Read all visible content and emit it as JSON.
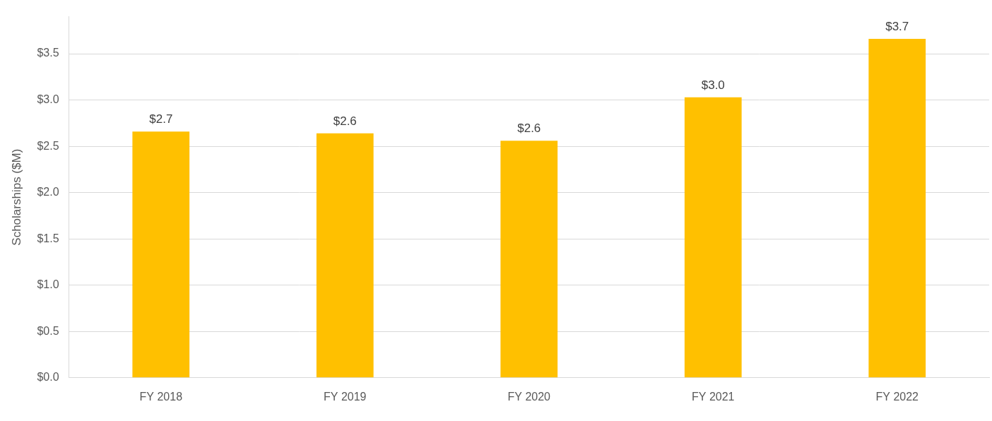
{
  "chart_data": {
    "type": "bar",
    "y_label": "Scholarships ($M)",
    "categories": [
      "FY 2018",
      "FY 2019",
      "FY 2020",
      "FY 2021",
      "FY 2022"
    ],
    "values": [
      2.66,
      2.64,
      2.56,
      3.03,
      3.66
    ],
    "value_labels": [
      "$2.7",
      "$2.6",
      "$2.6",
      "$3.0",
      "$3.7"
    ],
    "data_labels": true,
    "color": "#ffc000",
    "ylim": [
      0,
      3.9
    ],
    "yticks": [
      {
        "value": 0,
        "label": "$0.0"
      },
      {
        "value": 0.5,
        "label": "$0.5"
      },
      {
        "value": 1,
        "label": "$1.0"
      },
      {
        "value": 1.5,
        "label": "$1.5"
      },
      {
        "value": 2,
        "label": "$2.0"
      },
      {
        "value": 2.5,
        "label": "$2.5"
      },
      {
        "value": 3,
        "label": "$3.0"
      },
      {
        "value": 3.5,
        "label": "$3.5"
      }
    ],
    "grid": true
  }
}
